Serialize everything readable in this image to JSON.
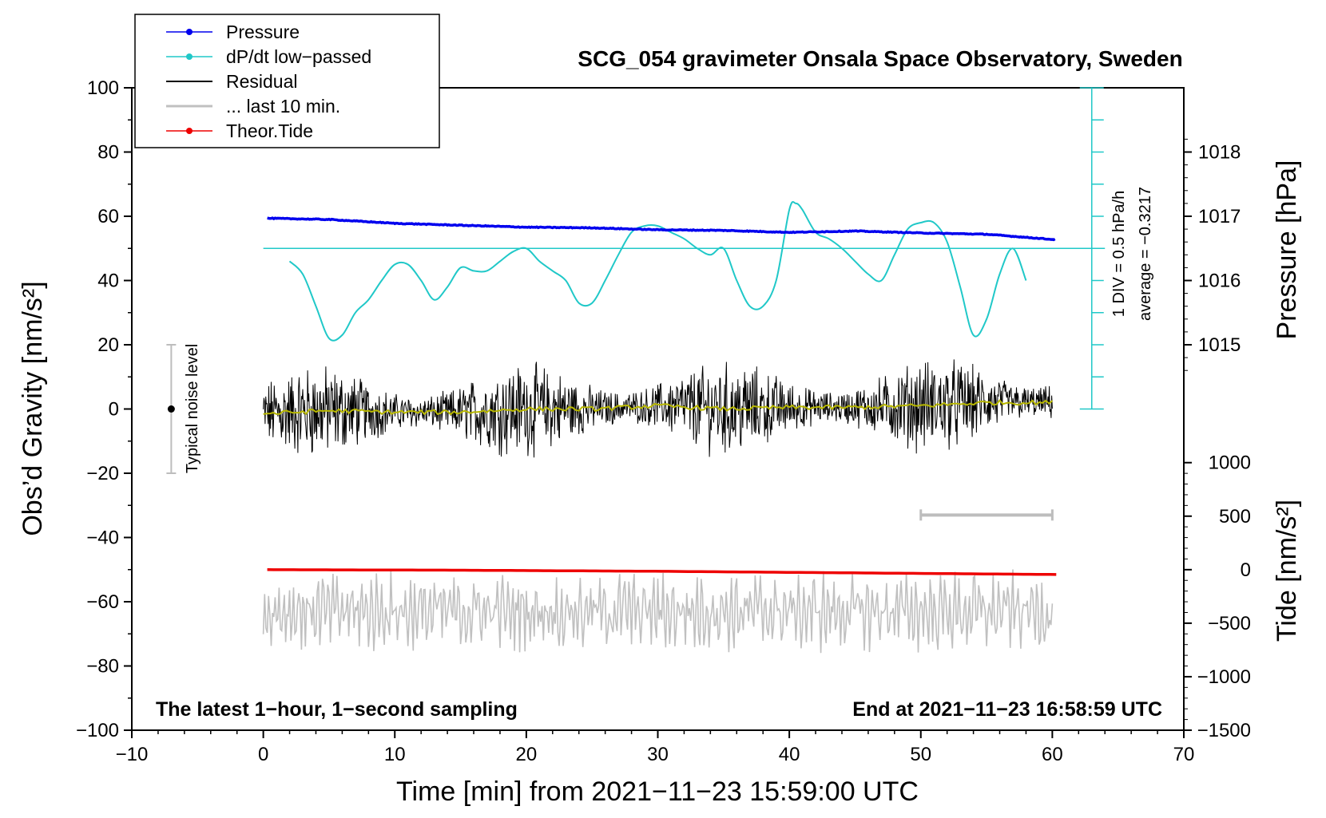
{
  "chart_data": {
    "type": "line",
    "title": "SCG_054 gravimeter Onsala Space Observatory, Sweden",
    "xlabel": "Time [min] from 2021−11−23 15:59:00 UTC",
    "ylabel_left": "Obs’d Gravity [nm/s²]",
    "ylabel_right_pressure": "Pressure [hPa]",
    "ylabel_right_tide": "Tide [nm/s²]",
    "xlim": [
      -10,
      70
    ],
    "ylim": [
      -100,
      100
    ],
    "x_ticks": [
      -10,
      0,
      10,
      20,
      30,
      40,
      50,
      60,
      70
    ],
    "x_tick_labels": [
      "−10",
      "0",
      "10",
      "20",
      "30",
      "40",
      "50",
      "60",
      "70"
    ],
    "y_ticks": [
      100,
      80,
      60,
      40,
      20,
      0,
      -20,
      -40,
      -60,
      -80,
      -100
    ],
    "y_tick_labels": [
      "100",
      "80",
      "60",
      "40",
      "20",
      "0",
      "−20",
      "−40",
      "−60",
      "−80",
      "−100"
    ],
    "pressure_axis": {
      "ticks": [
        1018,
        1017,
        1016,
        1015
      ],
      "tick_labels": [
        "1018",
        "1017",
        "1016",
        "1015"
      ],
      "range_on_gravity_axis": {
        "1018": 80,
        "1017": 60,
        "1016": 40,
        "1015": 20
      }
    },
    "tide_axis": {
      "ticks": [
        1000,
        500,
        0,
        -500,
        -1000,
        -1500
      ],
      "tick_labels": [
        "1000",
        "500",
        "0",
        "−500",
        "−1000",
        "−1500"
      ],
      "range_on_gravity_axis": {
        "1000": -16.7,
        "-1500": -100
      }
    },
    "legend": {
      "position": "top-left",
      "entries": [
        {
          "label": "Pressure",
          "color": "#0000ee",
          "marker": true
        },
        {
          "label": "dP/dt low−passed",
          "color": "#20c8c8",
          "marker": true
        },
        {
          "label": "Residual",
          "color": "#000000",
          "marker": false
        },
        {
          "label": "... last 10 min.",
          "color": "#c0c0c0",
          "marker": false
        },
        {
          "label": "Theor.Tide",
          "color": "#ee0000",
          "marker": true
        }
      ]
    },
    "series": [
      {
        "name": "Pressure",
        "color": "#0000ee",
        "axis": "pressure_hPa",
        "x": [
          0,
          5,
          10,
          15,
          20,
          25,
          30,
          35,
          40,
          45,
          50,
          55,
          60
        ],
        "values": [
          1016.97,
          1016.95,
          1016.89,
          1016.86,
          1016.83,
          1016.82,
          1016.79,
          1016.78,
          1016.75,
          1016.77,
          1016.74,
          1016.72,
          1016.64
        ]
      },
      {
        "name": "dP/dt low−passed",
        "color": "#20c8c8",
        "axis": "gravity_units",
        "x": [
          2,
          3,
          4,
          5,
          6,
          7,
          8,
          9,
          10,
          11,
          12,
          13,
          14,
          15,
          16,
          17,
          18,
          19,
          20,
          21,
          22,
          23,
          24,
          25,
          26,
          27,
          28,
          29,
          30,
          31,
          32,
          33,
          34,
          35,
          36,
          37,
          38,
          39,
          40,
          40.5,
          41,
          42,
          43,
          44,
          45,
          46,
          47,
          48,
          49,
          50,
          51,
          52,
          53,
          54,
          55,
          56,
          57,
          58
        ],
        "values": [
          46,
          42,
          32,
          22,
          23,
          30,
          34,
          40,
          45,
          45,
          40,
          34,
          38,
          44,
          43,
          43,
          46,
          49,
          50,
          46,
          43,
          40,
          33,
          33,
          40,
          48,
          55,
          57,
          57,
          55,
          53,
          50,
          48,
          50,
          40,
          32,
          32,
          40,
          62,
          64,
          62,
          55,
          53,
          50,
          46,
          42,
          40,
          48,
          56,
          58,
          58,
          52,
          38,
          23,
          28,
          42,
          50,
          40
        ]
      },
      {
        "name": "Residual",
        "color": "#000000",
        "axis": "gravity_units",
        "x_range": [
          0,
          60
        ],
        "noise_amplitude_nm_s2": 10,
        "envelope_nm_s2": [
          -17,
          20
        ]
      },
      {
        "name": "Residual smoothed",
        "color": "#b8b800",
        "axis": "gravity_units",
        "x": [
          0,
          5,
          10,
          15,
          20,
          25,
          30,
          35,
          40,
          45,
          50,
          55,
          60
        ],
        "values": [
          -1.5,
          -0.5,
          -1,
          -1,
          0,
          0,
          1,
          0,
          0.5,
          0.5,
          1,
          2,
          2
        ]
      },
      {
        "name": "... last 10 min.",
        "color": "#c0c0c0",
        "axis": "gravity_units_offset",
        "x_range": [
          0,
          60
        ],
        "center_nm_s2": -63,
        "amplitude_nm_s2": 9
      },
      {
        "name": "Theor.Tide",
        "color": "#ee0000",
        "axis": "tide_nm_s2",
        "x": [
          0,
          15,
          30,
          45,
          60
        ],
        "values": [
          0,
          -5,
          -15,
          -30,
          -45
        ]
      }
    ],
    "dpdt_scale": {
      "label_1": "1 DIV = 0.5 hPa/h",
      "label_2": "average = −0.3217",
      "reference_level": 50,
      "x_position": 63,
      "tick_step": 10,
      "range": [
        0,
        100
      ]
    },
    "noise_level_bar": {
      "label": "Typical noise level",
      "x": -7,
      "center": 0,
      "half_range": 20
    },
    "last10_range_bar": {
      "x_start": 50,
      "x_end": 60,
      "y": -33
    },
    "annotations": {
      "bottom_left": "The latest 1−hour, 1−second sampling",
      "bottom_right": "End at 2021−11−23 16:58:59 UTC"
    }
  }
}
